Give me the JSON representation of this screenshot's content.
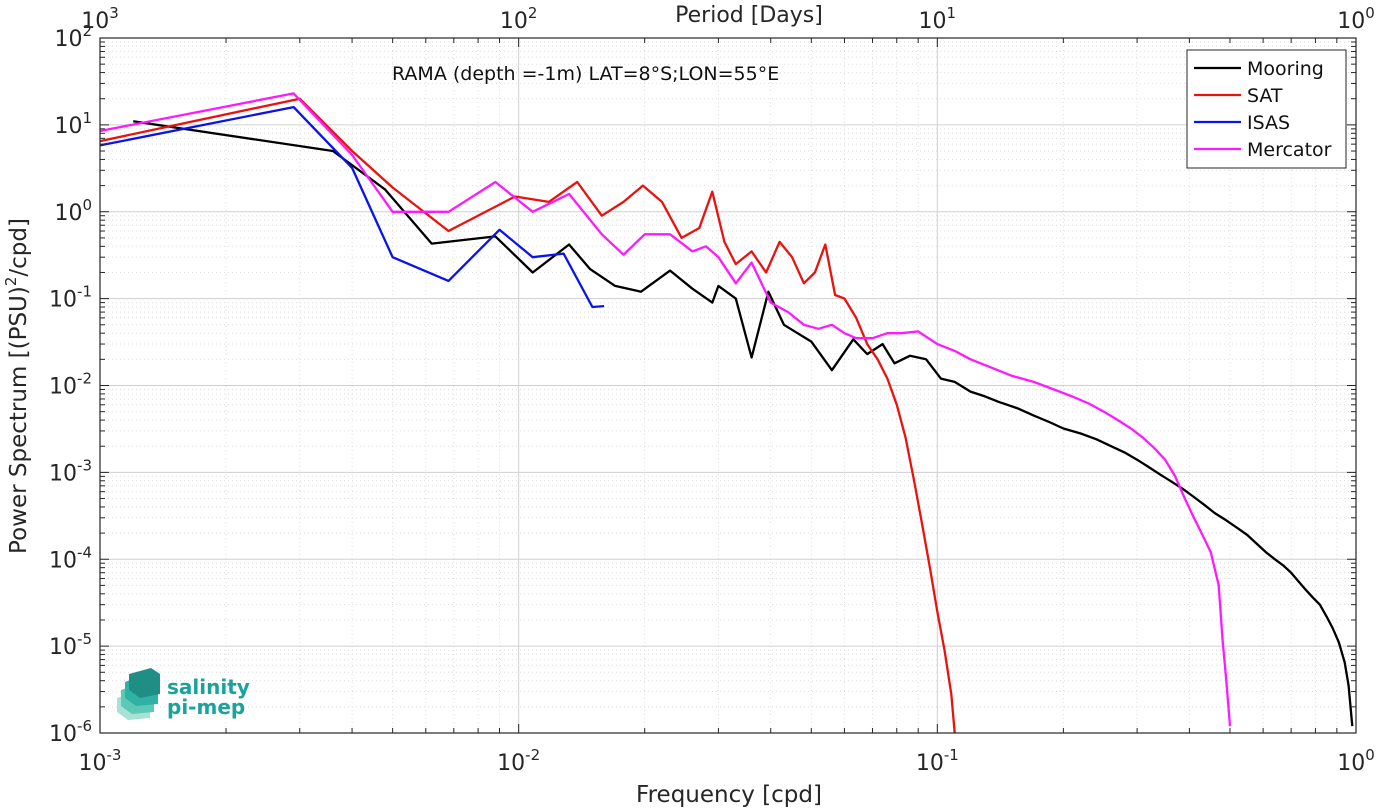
{
  "chart_data": {
    "type": "line",
    "title": "RAMA (depth =-1m) LAT=8°S;LON=55°E",
    "xlabel": "Frequency [cpd]",
    "ylabel": "Power Spectrum [(PSU)",
    "ylabel_sup": "2",
    "ylabel_tail": "/cpd]",
    "top_xlabel": "Period [Days]",
    "xscale": "log",
    "yscale": "log",
    "xlim": [
      0.001,
      1
    ],
    "ylim": [
      1e-06,
      100
    ],
    "grid": true,
    "legend_position": "top-right",
    "x_ticks": [
      {
        "base": "10",
        "exp": "-3",
        "value": 0.001
      },
      {
        "base": "10",
        "exp": "-2",
        "value": 0.01
      },
      {
        "base": "10",
        "exp": "-1",
        "value": 0.1
      },
      {
        "base": "10",
        "exp": "0",
        "value": 1
      }
    ],
    "top_ticks": [
      {
        "base": "10",
        "exp": "3",
        "value": 0.001
      },
      {
        "base": "10",
        "exp": "2",
        "value": 0.01
      },
      {
        "base": "10",
        "exp": "1",
        "value": 0.1
      },
      {
        "base": "10",
        "exp": "0",
        "value": 1
      }
    ],
    "y_ticks": [
      {
        "base": "10",
        "exp": "2",
        "value": 100
      },
      {
        "base": "10",
        "exp": "1",
        "value": 10
      },
      {
        "base": "10",
        "exp": "0",
        "value": 1
      },
      {
        "base": "10",
        "exp": "-1",
        "value": 0.1
      },
      {
        "base": "10",
        "exp": "-2",
        "value": 0.01
      },
      {
        "base": "10",
        "exp": "-3",
        "value": 0.001
      },
      {
        "base": "10",
        "exp": "-4",
        "value": 0.0001
      },
      {
        "base": "10",
        "exp": "-5",
        "value": 1e-05
      },
      {
        "base": "10",
        "exp": "-6",
        "value": 1e-06
      }
    ],
    "series": [
      {
        "name": "Mooring",
        "color": "#000000",
        "x": [
          0.0012,
          0.0036,
          0.0048,
          0.0062,
          0.0088,
          0.0108,
          0.0132,
          0.0148,
          0.017,
          0.0196,
          0.023,
          0.026,
          0.029,
          0.03,
          0.033,
          0.036,
          0.0395,
          0.043,
          0.05,
          0.056,
          0.063,
          0.068,
          0.074,
          0.079,
          0.086,
          0.094,
          0.102,
          0.11,
          0.12,
          0.13,
          0.14,
          0.155,
          0.17,
          0.185,
          0.2,
          0.22,
          0.24,
          0.26,
          0.28,
          0.3,
          0.32,
          0.34,
          0.36,
          0.385,
          0.41,
          0.435,
          0.46,
          0.49,
          0.52,
          0.55,
          0.58,
          0.61,
          0.64,
          0.67,
          0.7,
          0.73,
          0.76,
          0.79,
          0.82,
          0.85,
          0.88,
          0.91,
          0.94,
          0.96,
          0.98
        ],
        "y": [
          11,
          5,
          1.8,
          0.43,
          0.52,
          0.2,
          0.42,
          0.22,
          0.14,
          0.12,
          0.21,
          0.13,
          0.09,
          0.14,
          0.1,
          0.021,
          0.12,
          0.05,
          0.032,
          0.015,
          0.034,
          0.023,
          0.03,
          0.018,
          0.022,
          0.02,
          0.012,
          0.011,
          0.0085,
          0.0075,
          0.0065,
          0.0055,
          0.0045,
          0.0038,
          0.0032,
          0.0028,
          0.0024,
          0.002,
          0.0017,
          0.0014,
          0.00115,
          0.00095,
          0.0008,
          0.00065,
          0.00052,
          0.00042,
          0.00034,
          0.00028,
          0.00023,
          0.00019,
          0.00015,
          0.00012,
          0.0001,
          8.5e-05,
          7e-05,
          5.5e-05,
          4.4e-05,
          3.6e-05,
          3e-05,
          2.2e-05,
          1.6e-05,
          1.1e-05,
          6.5e-06,
          3.5e-06,
          1.2e-06
        ]
      },
      {
        "name": "SAT",
        "color": "#e8130e",
        "x": [
          0.001,
          0.003,
          0.004,
          0.005,
          0.0068,
          0.0098,
          0.0118,
          0.0138,
          0.0158,
          0.0178,
          0.0198,
          0.022,
          0.0245,
          0.027,
          0.029,
          0.031,
          0.033,
          0.036,
          0.039,
          0.042,
          0.045,
          0.048,
          0.051,
          0.054,
          0.057,
          0.06,
          0.064,
          0.068,
          0.072,
          0.076,
          0.08,
          0.084,
          0.088,
          0.092,
          0.096,
          0.1,
          0.104,
          0.108,
          0.11
        ],
        "y": [
          6.5,
          20,
          5,
          1.9,
          0.6,
          1.5,
          1.3,
          2.2,
          0.9,
          1.3,
          2.0,
          1.3,
          0.5,
          0.65,
          1.7,
          0.45,
          0.25,
          0.35,
          0.2,
          0.45,
          0.3,
          0.15,
          0.2,
          0.42,
          0.11,
          0.1,
          0.06,
          0.03,
          0.02,
          0.012,
          0.006,
          0.0025,
          0.0008,
          0.00025,
          8e-05,
          2.5e-05,
          9e-06,
          2.8e-06,
          1e-06
        ]
      },
      {
        "name": "ISAS",
        "color": "#0a13e8",
        "x": [
          0.001,
          0.0029,
          0.004,
          0.005,
          0.0068,
          0.009,
          0.0108,
          0.0128,
          0.015,
          0.016
        ],
        "y": [
          5.8,
          16,
          3.2,
          0.3,
          0.16,
          0.62,
          0.3,
          0.33,
          0.08,
          0.082
        ]
      },
      {
        "name": "Mercator",
        "color": "#ff19ff",
        "x": [
          0.001,
          0.0029,
          0.004,
          0.005,
          0.0068,
          0.0088,
          0.0108,
          0.0132,
          0.0158,
          0.0178,
          0.02,
          0.023,
          0.026,
          0.028,
          0.03,
          0.033,
          0.036,
          0.04,
          0.044,
          0.048,
          0.052,
          0.056,
          0.06,
          0.064,
          0.07,
          0.076,
          0.082,
          0.09,
          0.1,
          0.11,
          0.12,
          0.135,
          0.15,
          0.17,
          0.19,
          0.21,
          0.23,
          0.25,
          0.27,
          0.29,
          0.31,
          0.33,
          0.35,
          0.37,
          0.39,
          0.41,
          0.43,
          0.45,
          0.47,
          0.48,
          0.49,
          0.5
        ],
        "y": [
          8.5,
          23,
          4.5,
          1.0,
          1.0,
          2.2,
          1.0,
          1.6,
          0.55,
          0.32,
          0.55,
          0.55,
          0.35,
          0.4,
          0.3,
          0.15,
          0.26,
          0.09,
          0.07,
          0.05,
          0.045,
          0.05,
          0.04,
          0.035,
          0.035,
          0.04,
          0.04,
          0.042,
          0.03,
          0.025,
          0.02,
          0.016,
          0.013,
          0.011,
          0.009,
          0.0075,
          0.0062,
          0.005,
          0.004,
          0.0032,
          0.0025,
          0.0019,
          0.0014,
          0.0009,
          0.0005,
          0.0003,
          0.00019,
          0.00012,
          5e-05,
          1.2e-05,
          4e-06,
          1.2e-06
        ]
      }
    ]
  },
  "logo": {
    "line1": "salinity",
    "line2": "pi-mep",
    "colors": [
      "#1f8f86",
      "#2fb2a3",
      "#5cc9b6",
      "#a8e2d4"
    ]
  }
}
